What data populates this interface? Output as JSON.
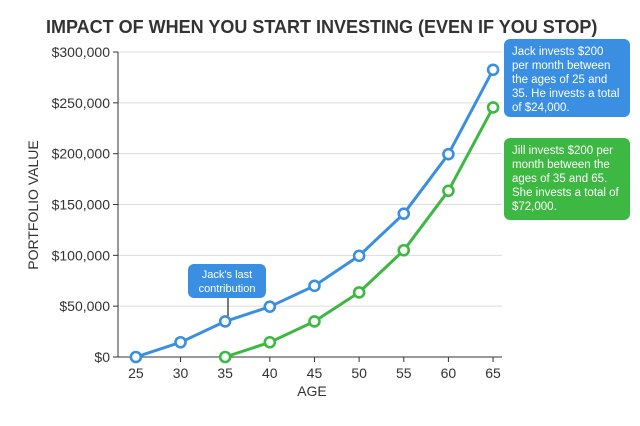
{
  "chart_data": {
    "type": "line",
    "title": "IMPACT OF WHEN YOU START INVESTING (EVEN IF YOU STOP)",
    "xlabel": "AGE",
    "ylabel": "PORTFOLIO VALUE",
    "x_ticks": [
      "25",
      "30",
      "35",
      "40",
      "45",
      "50",
      "55",
      "60",
      "65"
    ],
    "y_ticks": [
      "$0",
      "$50,000",
      "$100,000",
      "$150,000",
      "$200,000",
      "$250,000",
      "$300,000"
    ],
    "xlim": [
      23,
      66
    ],
    "ylim": [
      0,
      300000
    ],
    "grid": "horizontal",
    "series": [
      {
        "color": "#3b8fe3",
        "x": [
          25,
          30,
          35,
          40,
          45,
          50,
          55,
          60,
          65
        ],
        "y": [
          0,
          14500,
          35000,
          49500,
          70000,
          99500,
          141000,
          199500,
          282500
        ]
      },
      {
        "color": "#3db842",
        "x": [
          35,
          40,
          45,
          50,
          55,
          60,
          65
        ],
        "y": [
          0,
          14500,
          35000,
          63500,
          105000,
          163500,
          245500
        ]
      }
    ],
    "annotations": [
      {
        "text": "Jack's last contribution",
        "x": 35,
        "y": 35000,
        "color": "#3b8fe3"
      },
      {
        "text": "Jack invests $200 per month between the ages of 25 and 35. He invests a total of $24,000.",
        "color": "#3b8fe3"
      },
      {
        "text": "Jill invests $200 per month between the ages of 35 and 65. She invests a total of $72,000.",
        "color": "#3db842"
      }
    ]
  }
}
